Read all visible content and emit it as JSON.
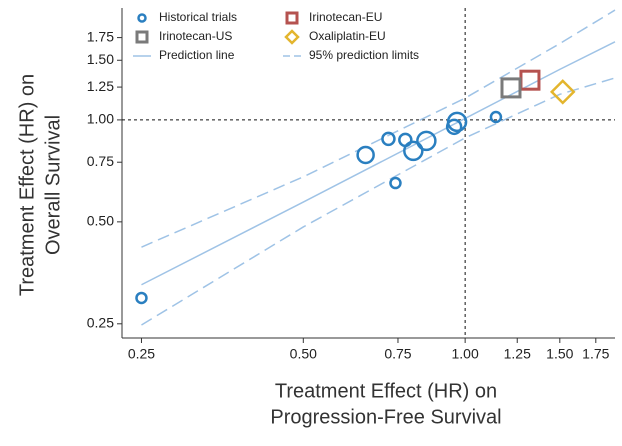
{
  "chart_data": {
    "type": "scatter",
    "x_label": [
      "Treatment Effect (HR) on",
      "Progression-Free Survival"
    ],
    "y_label": [
      "Treatment Effect (HR) on",
      "Overall Survival"
    ],
    "xscale": "log",
    "yscale": "log",
    "xlim": [
      0.23,
      1.9
    ],
    "ylim": [
      0.227,
      2.14
    ],
    "xticks": [
      0.25,
      {
        "value": 0.5,
        "label": "0.50"
      },
      0.75,
      {
        "value": 1,
        "label": "1.00"
      },
      1.25,
      {
        "value": 1.5,
        "label": "1.50"
      },
      1.75
    ],
    "yticks": [
      0.25,
      {
        "value": 0.5,
        "label": "0.50"
      },
      0.75,
      {
        "value": 1,
        "label": "1.00"
      },
      1.25,
      {
        "value": 1.5,
        "label": "1.50"
      },
      1.75
    ],
    "reference_lines": {
      "x": 1,
      "y": 1
    },
    "legend": "upper left",
    "series": [
      {
        "name": "Historical trials",
        "kind": "points",
        "marker": "circle",
        "color": "#2a7fc0",
        "x": [
          0.25,
          0.653,
          0.72,
          0.742,
          0.774,
          0.801,
          0.847,
          0.954,
          0.966,
          1.141
        ],
        "values": [
          0.298,
          0.788,
          0.879,
          0.651,
          0.873,
          0.81,
          0.867,
          0.954,
          0.987,
          1.02
        ],
        "sizes": [
          5,
          8,
          6,
          5,
          6,
          9,
          9,
          7,
          9,
          5
        ]
      },
      {
        "name": "Irinotecan-EU",
        "kind": "points",
        "marker": "square",
        "color": "#b5524f",
        "x": [
          1.32
        ],
        "values": [
          1.31
        ],
        "sizes": [
          9
        ]
      },
      {
        "name": "Irinotecan-US",
        "kind": "points",
        "marker": "square",
        "color": "#7a7a7a",
        "x": [
          1.217
        ],
        "values": [
          1.243
        ],
        "sizes": [
          9
        ]
      },
      {
        "name": "Oxaliplatin-EU",
        "kind": "points",
        "marker": "diamond",
        "color": "#e3b52e",
        "x": [
          1.519
        ],
        "values": [
          1.21
        ],
        "sizes": [
          11
        ]
      },
      {
        "name": "Prediction line",
        "kind": "line",
        "color": "#9fc3e6",
        "x": [
          0.25,
          0.5,
          1,
          1.5,
          1.9
        ],
        "values": [
          0.326,
          0.572,
          1.01,
          1.41,
          1.7
        ]
      },
      {
        "name": "95% prediction limits",
        "kind": "band",
        "color": "#9fc3e6",
        "x": [
          0.25,
          0.5,
          1,
          1.5,
          1.9
        ],
        "upper": [
          0.421,
          0.679,
          1.16,
          1.68,
          2.11
        ],
        "lower": [
          0.248,
          0.483,
          0.885,
          1.19,
          1.33
        ]
      }
    ]
  }
}
